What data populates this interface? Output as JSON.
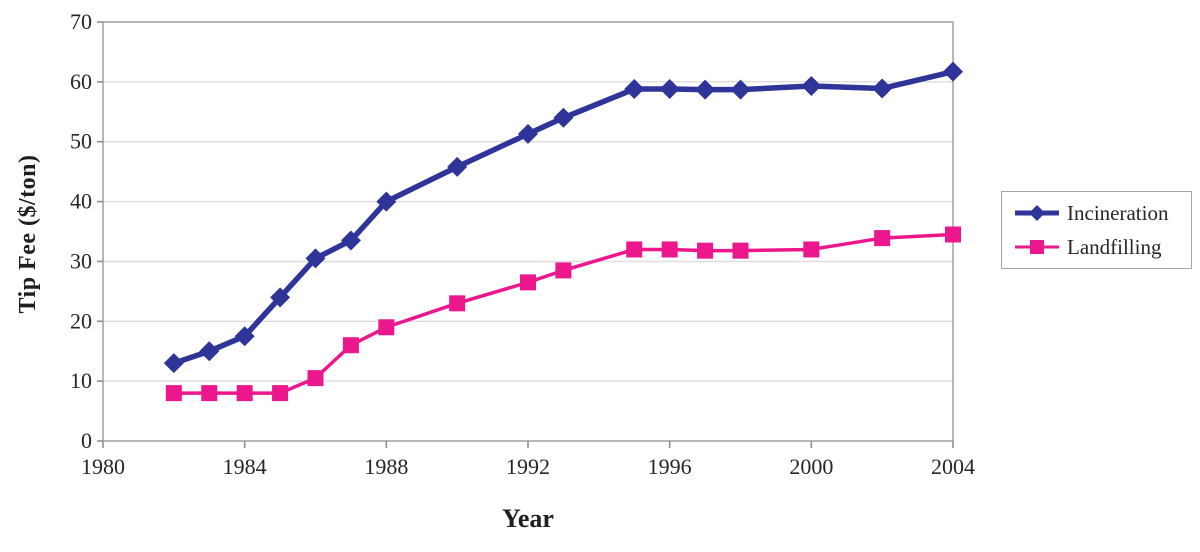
{
  "chart_data": {
    "type": "line",
    "title": "",
    "xlabel": "Year",
    "ylabel": "Tip Fee ($/ton)",
    "x": [
      1982,
      1983,
      1984,
      1985,
      1986,
      1987,
      1988,
      1990,
      1992,
      1993,
      1995,
      1996,
      1997,
      1998,
      2000,
      2002,
      2004
    ],
    "series": [
      {
        "name": "Incineration",
        "color": "#2F3498",
        "marker": "diamond",
        "line_width": 5.5,
        "values": [
          13,
          15,
          17.5,
          24,
          30.5,
          33.5,
          40,
          45.8,
          51.3,
          54,
          58.8,
          58.8,
          58.7,
          58.7,
          59.3,
          58.9,
          61.7
        ]
      },
      {
        "name": "Landfilling",
        "color": "#EC168D",
        "marker": "square",
        "line_width": 3.5,
        "values": [
          8,
          8,
          8,
          8,
          10.5,
          16,
          19,
          23,
          26.5,
          28.5,
          32,
          32,
          31.8,
          31.8,
          32,
          33.9,
          34.5
        ]
      }
    ],
    "xlim": [
      1980,
      2004
    ],
    "ylim": [
      0,
      70
    ],
    "x_ticks": [
      1980,
      1984,
      1988,
      1992,
      1996,
      2000,
      2004
    ],
    "y_ticks": [
      0,
      10,
      20,
      30,
      40,
      50,
      60,
      70
    ],
    "grid": "horizontal",
    "legend_position": "right-outside",
    "colors": {
      "plot_border": "#a6a6a6",
      "gridline": "#dcdcdc",
      "axis_line": "#8f8f8f",
      "tick_text": "#262626"
    }
  }
}
